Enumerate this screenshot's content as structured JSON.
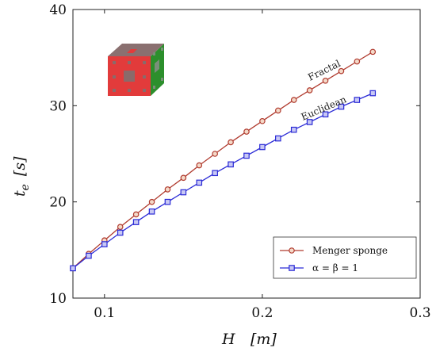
{
  "chart_data": {
    "type": "line",
    "xlabel": "H",
    "xunit": "[m]",
    "ylabel": "t",
    "ylabel_sub": "e",
    "yunit": "[s]",
    "xlim": [
      0.08,
      0.3
    ],
    "ylim": [
      10,
      40
    ],
    "xticks": [
      0.1,
      0.2,
      0.3
    ],
    "xtick_labels": [
      "0.1",
      "0.2",
      "0.3"
    ],
    "yticks": [
      10,
      20,
      30,
      40
    ],
    "ytick_labels": [
      "10",
      "20",
      "30",
      "40"
    ],
    "grid": false,
    "legend_position": "bottom-right",
    "x": [
      0.08,
      0.09,
      0.1,
      0.11,
      0.12,
      0.13,
      0.14,
      0.15,
      0.16,
      0.17,
      0.18,
      0.19,
      0.2,
      0.21,
      0.22,
      0.23,
      0.24,
      0.25,
      0.26,
      0.27
    ],
    "series": [
      {
        "name": "Menger sponge",
        "annotation": "Fractal",
        "color": "#b03a2e",
        "marker": "circle",
        "values": [
          13.1,
          14.6,
          16.0,
          17.4,
          18.7,
          20.0,
          21.3,
          22.5,
          23.8,
          25.0,
          26.2,
          27.3,
          28.4,
          29.5,
          30.6,
          31.6,
          32.6,
          33.6,
          34.6,
          35.6
        ]
      },
      {
        "name": "α = β = 1",
        "annotation": "Euclidean",
        "color": "#2a2ad6",
        "marker": "square",
        "values": [
          13.1,
          14.4,
          15.6,
          16.8,
          17.9,
          19.0,
          20.0,
          21.0,
          22.0,
          23.0,
          23.9,
          24.8,
          25.7,
          26.6,
          27.5,
          28.3,
          29.1,
          29.9,
          30.6,
          31.3
        ]
      }
    ]
  }
}
